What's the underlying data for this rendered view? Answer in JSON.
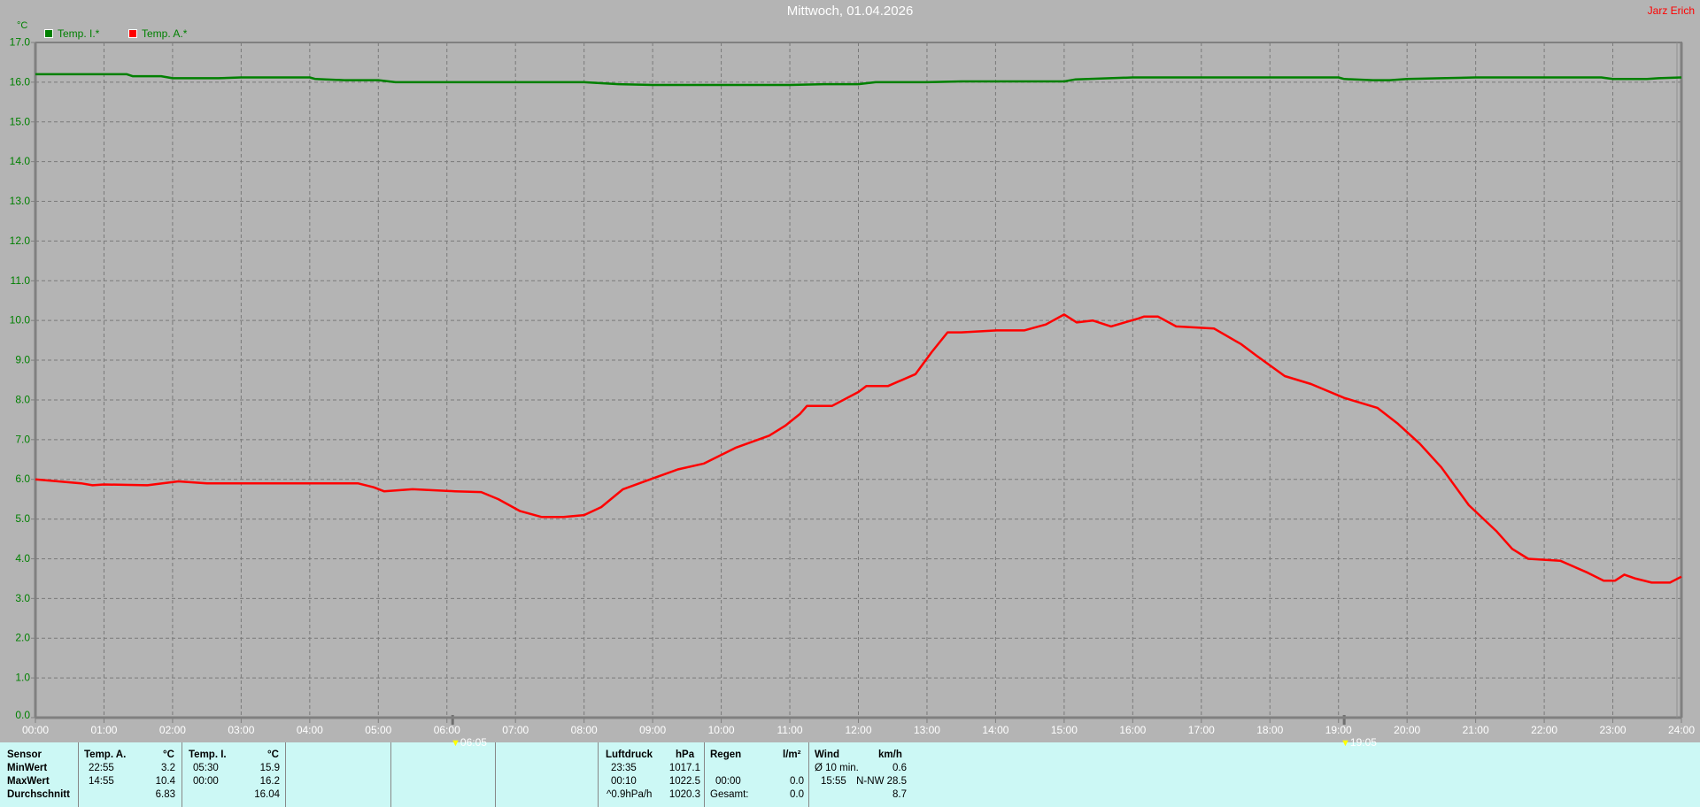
{
  "title": "Mittwoch, 01.04.2026",
  "author": "Jarz Erich",
  "sunrise": "06:05",
  "sunset": "19:05",
  "chart_data": {
    "type": "line",
    "ylabel": "°C",
    "ylim": [
      0,
      17
    ],
    "yticks": [
      "0.0",
      "1.0",
      "2.0",
      "3.0",
      "4.0",
      "5.0",
      "6.0",
      "7.0",
      "8.0",
      "9.0",
      "10.0",
      "11.0",
      "12.0",
      "13.0",
      "14.0",
      "15.0",
      "16.0",
      "17.0"
    ],
    "xticks": [
      "00:00",
      "01:00",
      "02:00",
      "03:00",
      "04:00",
      "05:00",
      "06:00",
      "07:00",
      "08:00",
      "09:00",
      "10:00",
      "11:00",
      "12:00",
      "13:00",
      "14:00",
      "15:00",
      "16:00",
      "17:00",
      "18:00",
      "19:00",
      "20:00",
      "21:00",
      "22:00",
      "23:00",
      "24:00"
    ],
    "grid": true,
    "legend_position": "top-left",
    "series": [
      {
        "name": "Temp. I.*",
        "color": "#008000",
        "points": [
          [
            "00:00",
            16.2
          ],
          [
            "01:20",
            16.2
          ],
          [
            "01:25",
            16.15
          ],
          [
            "01:50",
            16.15
          ],
          [
            "02:00",
            16.1
          ],
          [
            "02:40",
            16.1
          ],
          [
            "03:00",
            16.12
          ],
          [
            "04:00",
            16.12
          ],
          [
            "04:05",
            16.08
          ],
          [
            "04:30",
            16.05
          ],
          [
            "05:00",
            16.05
          ],
          [
            "05:15",
            16.0
          ],
          [
            "06:00",
            16.0
          ],
          [
            "07:00",
            16.0
          ],
          [
            "08:00",
            16.0
          ],
          [
            "08:30",
            15.95
          ],
          [
            "09:00",
            15.93
          ],
          [
            "10:00",
            15.93
          ],
          [
            "11:00",
            15.93
          ],
          [
            "11:30",
            15.95
          ],
          [
            "12:00",
            15.95
          ],
          [
            "12:15",
            16.0
          ],
          [
            "13:00",
            16.0
          ],
          [
            "13:30",
            16.02
          ],
          [
            "14:00",
            16.02
          ],
          [
            "15:00",
            16.02
          ],
          [
            "15:10",
            16.07
          ],
          [
            "15:40",
            16.1
          ],
          [
            "16:00",
            16.12
          ],
          [
            "17:00",
            16.12
          ],
          [
            "18:00",
            16.12
          ],
          [
            "19:00",
            16.12
          ],
          [
            "19:05",
            16.08
          ],
          [
            "19:30",
            16.05
          ],
          [
            "19:45",
            16.05
          ],
          [
            "20:00",
            16.08
          ],
          [
            "20:30",
            16.1
          ],
          [
            "21:00",
            16.12
          ],
          [
            "22:00",
            16.12
          ],
          [
            "22:50",
            16.12
          ],
          [
            "23:00",
            16.08
          ],
          [
            "23:30",
            16.08
          ],
          [
            "23:40",
            16.1
          ],
          [
            "24:00",
            16.12
          ]
        ]
      },
      {
        "name": "Temp. A.*",
        "color": "#ff0000",
        "points": [
          [
            "00:00",
            6.0
          ],
          [
            "00:40",
            5.9
          ],
          [
            "00:50",
            5.85
          ],
          [
            "01:00",
            5.87
          ],
          [
            "01:38",
            5.85
          ],
          [
            "02:05",
            5.95
          ],
          [
            "02:30",
            5.9
          ],
          [
            "03:00",
            5.9
          ],
          [
            "04:00",
            5.9
          ],
          [
            "04:42",
            5.9
          ],
          [
            "04:56",
            5.8
          ],
          [
            "05:05",
            5.7
          ],
          [
            "05:30",
            5.75
          ],
          [
            "06:07",
            5.7
          ],
          [
            "06:30",
            5.68
          ],
          [
            "06:45",
            5.5
          ],
          [
            "07:04",
            5.2
          ],
          [
            "07:23",
            5.05
          ],
          [
            "07:42",
            5.05
          ],
          [
            "08:00",
            5.1
          ],
          [
            "08:15",
            5.3
          ],
          [
            "08:34",
            5.75
          ],
          [
            "08:58",
            6.0
          ],
          [
            "09:22",
            6.25
          ],
          [
            "09:45",
            6.4
          ],
          [
            "09:59",
            6.6
          ],
          [
            "10:13",
            6.8
          ],
          [
            "10:42",
            7.1
          ],
          [
            "10:56",
            7.35
          ],
          [
            "11:09",
            7.65
          ],
          [
            "11:15",
            7.85
          ],
          [
            "11:37",
            7.85
          ],
          [
            "12:00",
            8.2
          ],
          [
            "12:07",
            8.35
          ],
          [
            "12:26",
            8.35
          ],
          [
            "12:50",
            8.65
          ],
          [
            "13:04",
            9.2
          ],
          [
            "13:18",
            9.7
          ],
          [
            "13:30",
            9.7
          ],
          [
            "14:01",
            9.75
          ],
          [
            "14:25",
            9.75
          ],
          [
            "14:44",
            9.9
          ],
          [
            "15:00",
            10.15
          ],
          [
            "15:11",
            9.95
          ],
          [
            "15:25",
            10.0
          ],
          [
            "15:41",
            9.85
          ],
          [
            "16:05",
            10.05
          ],
          [
            "16:10",
            10.1
          ],
          [
            "16:22",
            10.1
          ],
          [
            "16:38",
            9.85
          ],
          [
            "17:11",
            9.8
          ],
          [
            "17:35",
            9.4
          ],
          [
            "17:49",
            9.1
          ],
          [
            "18:13",
            8.6
          ],
          [
            "18:36",
            8.4
          ],
          [
            "19:05",
            8.05
          ],
          [
            "19:34",
            7.8
          ],
          [
            "19:52",
            7.4
          ],
          [
            "20:11",
            6.9
          ],
          [
            "20:30",
            6.3
          ],
          [
            "20:54",
            5.35
          ],
          [
            "21:18",
            4.7
          ],
          [
            "21:32",
            4.25
          ],
          [
            "21:46",
            4.0
          ],
          [
            "22:14",
            3.95
          ],
          [
            "22:38",
            3.65
          ],
          [
            "22:52",
            3.45
          ],
          [
            "23:02",
            3.45
          ],
          [
            "23:10",
            3.6
          ],
          [
            "23:20",
            3.5
          ],
          [
            "23:34",
            3.4
          ],
          [
            "23:50",
            3.4
          ],
          [
            "24:00",
            3.55
          ]
        ]
      }
    ]
  },
  "table": {
    "labels": {
      "sensor": "Sensor",
      "min": "MinWert",
      "max": "MaxWert",
      "avg": "Durchschnitt"
    },
    "temp_a": {
      "head": "Temp. A.",
      "unit": "°C",
      "min_time": "22:55",
      "min": "3.2",
      "max_time": "14:55",
      "max": "10.4",
      "avg": "6.83"
    },
    "temp_i": {
      "head": "Temp. I.",
      "unit": "°C",
      "min_time": "05:30",
      "min": "15.9",
      "max_time": "00:00",
      "max": "16.2",
      "avg": "16.04"
    },
    "pressure": {
      "head": "Luftdruck",
      "unit": "hPa",
      "min_time": "23:35",
      "min": "1017.1",
      "max_time": "00:10",
      "max": "1022.5",
      "trend": "^0.9hPa/h",
      "avg": "1020.3"
    },
    "rain": {
      "head": "Regen",
      "unit": "l/m²",
      "max_time": "00:00",
      "max": "0.0",
      "total_label": "Gesamt:",
      "total": "0.0"
    },
    "wind": {
      "head": "Wind",
      "unit": "km/h",
      "avg_label": "Ø 10 min.",
      "avg10": "0.6",
      "max_time": "15:55",
      "max": "N-NW 28.5",
      "avg": "8.7"
    }
  }
}
